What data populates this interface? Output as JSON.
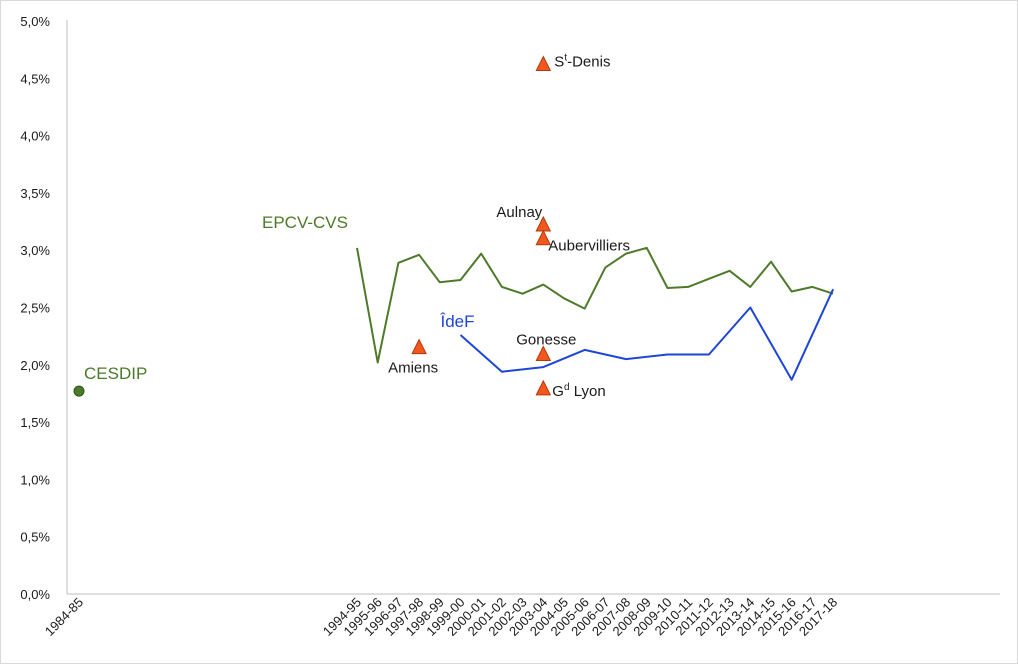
{
  "chart_data": {
    "type": "line",
    "y_ticks": [
      "0,0%",
      "0,5%",
      "1,0%",
      "1,5%",
      "2,0%",
      "2,5%",
      "3,0%",
      "3,5%",
      "4,0%",
      "4,5%",
      "5,0%"
    ],
    "ylim": [
      0,
      5
    ],
    "grid": false,
    "x_labels": [
      "1984-85",
      "1994-95",
      "1995-96",
      "1996-97",
      "1997-98",
      "1998-99",
      "1999-00",
      "2000-01",
      "2001-02",
      "2002-03",
      "2003-04",
      "2004-05",
      "2005-06",
      "2006-07",
      "2007-08",
      "2008-09",
      "2009-10",
      "2010-11",
      "2011-12",
      "2012-13",
      "2013-14",
      "2014-15",
      "2015-16",
      "2016-17",
      "2017-18"
    ],
    "series": [
      {
        "name": "EPCV-CVS",
        "color": "#4e7a29",
        "x": [
          "1994-95",
          "1995-96",
          "1996-97",
          "1997-98",
          "1998-99",
          "1999-00",
          "2000-01",
          "2001-02",
          "2002-03",
          "2003-04",
          "2004-05",
          "2005-06",
          "2006-07",
          "2007-08",
          "2008-09",
          "2009-10",
          "2010-11",
          "2011-12",
          "2012-13",
          "2013-14",
          "2014-15",
          "2015-16",
          "2016-17",
          "2017-18"
        ],
        "values": [
          3.02,
          2.02,
          2.89,
          2.96,
          2.72,
          2.74,
          2.97,
          2.68,
          2.62,
          2.7,
          2.58,
          2.49,
          2.85,
          2.97,
          3.02,
          2.67,
          2.68,
          2.75,
          2.82,
          2.68,
          2.9,
          2.64,
          2.68,
          2.62
        ]
      },
      {
        "name": "ÎdeF",
        "color": "#1e46d6",
        "x": [
          "1999-00",
          "2001-02",
          "2003-04",
          "2005-06",
          "2007-08",
          "2009-10",
          "2011-12",
          "2013-14",
          "2015-16",
          "2017-18"
        ],
        "values": [
          2.26,
          1.94,
          1.98,
          2.13,
          2.05,
          2.09,
          2.09,
          2.5,
          1.87,
          2.66
        ]
      }
    ],
    "points": [
      {
        "name": "CESDIP",
        "x": "1984-85",
        "value": 1.77,
        "color": "#4a7a2a",
        "marker": "circle"
      }
    ],
    "markers": [
      {
        "name": "St-Denis",
        "x": "2003-04",
        "value": 4.62,
        "label_base": "S",
        "label_sup": "t",
        "label_rest": "-Denis"
      },
      {
        "name": "Aulnay",
        "x": "2003-04",
        "value": 3.22,
        "label_base": "Aulnay",
        "label_sup": "",
        "label_rest": ""
      },
      {
        "name": "Aubervilliers",
        "x": "2003-04",
        "value": 3.1,
        "label_base": "Aubervilliers",
        "label_sup": "",
        "label_rest": ""
      },
      {
        "name": "Amiens",
        "x": "1997-98",
        "value": 2.15,
        "label_base": "Amiens",
        "label_sup": "",
        "label_rest": ""
      },
      {
        "name": "Gonesse",
        "x": "2003-04",
        "value": 2.09,
        "label_base": "Gonesse",
        "label_sup": "",
        "label_rest": ""
      },
      {
        "name": "Gd Lyon",
        "x": "2003-04",
        "value": 1.79,
        "label_base": "G",
        "label_sup": "d",
        "label_rest": " Lyon"
      }
    ],
    "marker_style": {
      "fill": "#f2581c",
      "stroke": "#b33a0d"
    }
  }
}
